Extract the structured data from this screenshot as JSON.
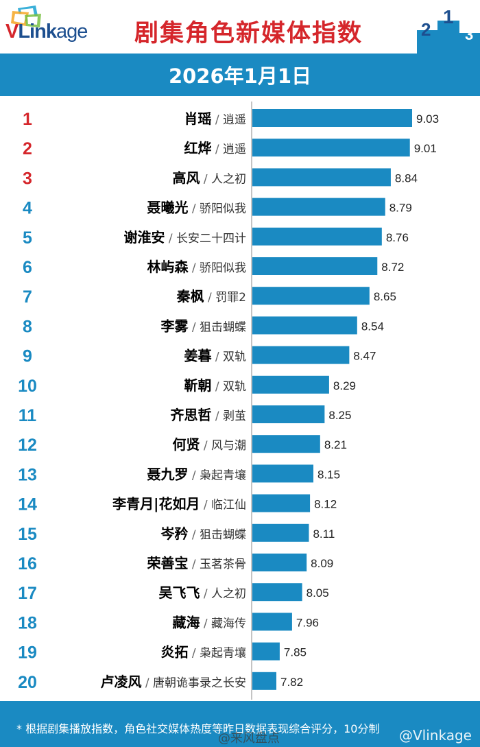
{
  "header": {
    "logo_text": "VLinkage",
    "title": "剧集角色新媒体指数"
  },
  "date_label": "2026年1月1日",
  "chart_data": {
    "type": "bar",
    "orientation": "horizontal",
    "title": "剧集角色新媒体指数",
    "categories": [
      {
        "rank": "1",
        "name": "肖瑶",
        "show": "逍遥"
      },
      {
        "rank": "2",
        "name": "红烨",
        "show": "逍遥"
      },
      {
        "rank": "3",
        "name": "高风",
        "show": "人之初"
      },
      {
        "rank": "4",
        "name": "聂曦光",
        "show": "骄阳似我"
      },
      {
        "rank": "5",
        "name": "谢淮安",
        "show": "长安二十四计"
      },
      {
        "rank": "6",
        "name": "林屿森",
        "show": "骄阳似我"
      },
      {
        "rank": "7",
        "name": "秦枫",
        "show": "罚罪2"
      },
      {
        "rank": "8",
        "name": "李雾",
        "show": "狙击蝴蝶"
      },
      {
        "rank": "9",
        "name": "姜暮",
        "show": "双轨"
      },
      {
        "rank": "10",
        "name": "靳朝",
        "show": "双轨"
      },
      {
        "rank": "11",
        "name": "齐思哲",
        "show": "剥茧"
      },
      {
        "rank": "12",
        "name": "何贤",
        "show": "风与潮"
      },
      {
        "rank": "13",
        "name": "聂九罗",
        "show": "枭起青壤"
      },
      {
        "rank": "14",
        "name": "李青月|花如月",
        "show": "临江仙"
      },
      {
        "rank": "15",
        "name": "岑矜",
        "show": "狙击蝴蝶"
      },
      {
        "rank": "16",
        "name": "荣善宝",
        "show": "玉茗茶骨"
      },
      {
        "rank": "17",
        "name": "吴飞飞",
        "show": "人之初"
      },
      {
        "rank": "18",
        "name": "藏海",
        "show": "藏海传"
      },
      {
        "rank": "19",
        "name": "炎拓",
        "show": "枭起青壤"
      },
      {
        "rank": "20",
        "name": "卢凌风",
        "show": "唐朝诡事录之长安"
      }
    ],
    "values": [
      9.03,
      9.01,
      8.84,
      8.79,
      8.76,
      8.72,
      8.65,
      8.54,
      8.47,
      8.29,
      8.25,
      8.21,
      8.15,
      8.12,
      8.11,
      8.09,
      8.05,
      7.96,
      7.85,
      7.82
    ],
    "xlim": [
      7.6,
      9.03
    ],
    "colors": {
      "bar": "#1a8ac2",
      "rank_top3": "#d5262b",
      "rank_rest": "#1a8ac2",
      "name": "#000000",
      "show": "#333333"
    }
  },
  "footer": {
    "footnote": "* 根据剧集播放指数，角色社交媒体热度等昨日数据表现综合评分，10分制",
    "watermark": "@来风盘点",
    "credit": "@Vlinkage"
  }
}
